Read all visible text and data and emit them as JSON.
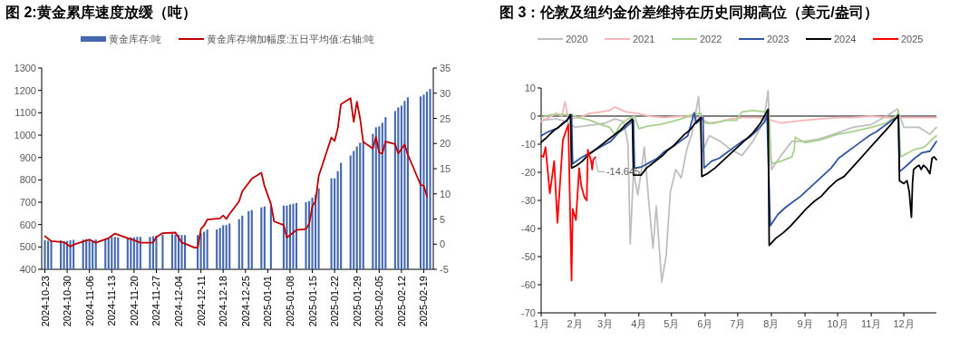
{
  "chart_data": [
    {
      "type": "bar",
      "title": "图 2:黄金累库速度放缓（吨）",
      "legend": "top",
      "xlim": [
        "2024-10-22",
        "2025-02-22"
      ],
      "xticks": [
        "2024-10-23",
        "2024-10-30",
        "2024-11-06",
        "2024-11-13",
        "2024-11-20",
        "2024-11-27",
        "2024-12-04",
        "2024-12-11",
        "2024-12-18",
        "2024-12-25",
        "2025-01-01",
        "2025-01-08",
        "2025-01-15",
        "2025-01-22",
        "2025-01-29",
        "2025-02-05",
        "2025-02-12",
        "2025-02-19"
      ],
      "ylim": [
        400,
        1300
      ],
      "yticks": [
        400,
        500,
        600,
        700,
        800,
        900,
        1000,
        1100,
        1200,
        1300
      ],
      "y2lim": [
        -5,
        35
      ],
      "y2ticks": [
        -5,
        0,
        5,
        10,
        15,
        20,
        25,
        30,
        35
      ],
      "series": [
        {
          "name": "黄金库存:吨",
          "color": "#4468b0",
          "x": [
            "2024-10-23",
            "2024-10-24",
            "2024-10-25",
            "2024-10-28",
            "2024-10-29",
            "2024-10-30",
            "2024-10-31",
            "2024-11-01",
            "2024-11-04",
            "2024-11-05",
            "2024-11-06",
            "2024-11-07",
            "2024-11-08",
            "2024-11-11",
            "2024-11-12",
            "2024-11-13",
            "2024-11-14",
            "2024-11-15",
            "2024-11-18",
            "2024-11-19",
            "2024-11-20",
            "2024-11-21",
            "2024-11-22",
            "2024-11-25",
            "2024-11-26",
            "2024-11-27",
            "2024-11-29",
            "2024-12-02",
            "2024-12-03",
            "2024-12-04",
            "2024-12-05",
            "2024-12-06",
            "2024-12-10",
            "2024-12-11",
            "2024-12-12",
            "2024-12-13",
            "2024-12-16",
            "2024-12-17",
            "2024-12-18",
            "2024-12-19",
            "2024-12-20",
            "2024-12-23",
            "2024-12-24",
            "2024-12-26",
            "2024-12-27",
            "2024-12-30",
            "2024-12-31",
            "2025-01-02",
            "2025-01-06",
            "2025-01-07",
            "2025-01-08",
            "2025-01-09",
            "2025-01-10",
            "2025-01-13",
            "2025-01-14",
            "2025-01-15",
            "2025-01-16",
            "2025-01-17",
            "2025-01-21",
            "2025-01-22",
            "2025-01-23",
            "2025-01-24",
            "2025-01-27",
            "2025-01-28",
            "2025-01-29",
            "2025-01-30",
            "2025-01-31",
            "2025-02-03",
            "2025-02-04",
            "2025-02-05",
            "2025-02-06",
            "2025-02-07",
            "2025-02-10",
            "2025-02-11",
            "2025-02-12",
            "2025-02-13",
            "2025-02-14",
            "2025-02-18",
            "2025-02-19",
            "2025-02-20",
            "2025-02-21"
          ],
          "values": [
            530,
            528,
            525,
            530,
            525,
            527,
            530,
            532,
            533,
            535,
            535,
            530,
            533,
            535,
            540,
            545,
            545,
            543,
            542,
            543,
            543,
            545,
            545,
            545,
            548,
            550,
            555,
            557,
            555,
            555,
            553,
            553,
            553,
            562,
            568,
            578,
            578,
            585,
            597,
            598,
            605,
            624,
            640,
            660,
            665,
            677,
            681,
            683,
            685,
            685,
            690,
            693,
            697,
            700,
            705,
            720,
            733,
            762,
            807,
            807,
            839,
            876,
            909,
            929,
            949,
            966,
            970,
            1006,
            1035,
            1039,
            1055,
            1080,
            1108,
            1124,
            1132,
            1153,
            1169,
            1173,
            1181,
            1194,
            1206
          ]
        },
        {
          "name": "黄金库存增加幅度:五日平均值:右轴:吨",
          "type": "line",
          "axis": "y2",
          "color": "#c00000",
          "x": [
            "2024-10-23",
            "2024-10-25",
            "2024-10-29",
            "2024-10-31",
            "2024-11-01",
            "2024-11-04",
            "2024-11-06",
            "2024-11-08",
            "2024-11-12",
            "2024-11-14",
            "2024-11-18",
            "2024-11-20",
            "2024-11-22",
            "2024-11-26",
            "2024-11-27",
            "2024-11-29",
            "2024-12-03",
            "2024-12-05",
            "2024-12-06",
            "2024-12-09",
            "2024-12-10",
            "2024-12-11",
            "2024-12-12",
            "2024-12-13",
            "2024-12-17",
            "2024-12-18",
            "2024-12-19",
            "2024-12-20",
            "2024-12-23",
            "2024-12-24",
            "2024-12-27",
            "2024-12-30",
            "2024-12-31",
            "2025-01-02",
            "2025-01-03",
            "2025-01-06",
            "2025-01-07",
            "2025-01-08",
            "2025-01-10",
            "2025-01-13",
            "2025-01-14",
            "2025-01-15",
            "2025-01-16",
            "2025-01-17",
            "2025-01-21",
            "2025-01-22",
            "2025-01-23",
            "2025-01-24",
            "2025-01-27",
            "2025-01-28",
            "2025-01-29",
            "2025-01-30",
            "2025-01-31",
            "2025-02-03",
            "2025-02-04",
            "2025-02-05",
            "2025-02-06",
            "2025-02-07",
            "2025-02-10",
            "2025-02-11",
            "2025-02-13",
            "2025-02-14",
            "2025-02-18",
            "2025-02-19",
            "2025-02-20"
          ],
          "values": [
            1.6,
            0.6,
            0.4,
            -0.5,
            -0.1,
            0.5,
            0.9,
            0.3,
            1.2,
            2.1,
            1.2,
            0.8,
            0.3,
            0.3,
            1.4,
            2.2,
            2.3,
            0.3,
            0.1,
            -0.7,
            -0.7,
            3.0,
            3.7,
            4.9,
            5.1,
            5.7,
            5.0,
            6.0,
            8.5,
            10.5,
            13,
            14.2,
            11.5,
            8,
            4.5,
            3.8,
            1.3,
            1.8,
            2.8,
            3.0,
            4,
            7.5,
            8.5,
            13.5,
            21.2,
            20.5,
            23,
            27.8,
            29,
            24.3,
            28.3,
            25,
            20.3,
            19,
            21.3,
            18.2,
            18,
            20.4,
            19.9,
            18,
            19.8,
            17.8,
            11.8,
            11.6,
            9.5
          ]
        }
      ]
    },
    {
      "type": "line",
      "title": "图 3：伦敦及纽约金价差维持在历史同期高位（美元/盎司）",
      "legend": "top",
      "xlim": [
        "--01-01",
        "--12-31"
      ],
      "xticks": [
        {
          "value": "--01-01",
          "label": "1月"
        },
        {
          "value": "--02-01",
          "label": "2月"
        },
        {
          "value": "--03-01",
          "label": "3月"
        },
        {
          "value": "--04-01",
          "label": "4月"
        },
        {
          "value": "--05-01",
          "label": "5月"
        },
        {
          "value": "--06-01",
          "label": "6月"
        },
        {
          "value": "--07-01",
          "label": "7月"
        },
        {
          "value": "--08-01",
          "label": "8月"
        },
        {
          "value": "--09-01",
          "label": "9月"
        },
        {
          "value": "--10-01",
          "label": "10月"
        },
        {
          "value": "--11-01",
          "label": "11月"
        },
        {
          "value": "--12-01",
          "label": "12月"
        }
      ],
      "ylim": [
        -70,
        10
      ],
      "yticks": [
        -70,
        -60,
        -50,
        -40,
        -30,
        -20,
        -10,
        0,
        10
      ],
      "ref_lines": [
        {
          "axis": "y",
          "value": 0,
          "color": "#808080"
        }
      ],
      "annotations": [
        {
          "text": "-14.645",
          "x": "--02-20",
          "y": -14.645
        }
      ],
      "series": [
        {
          "name": "2020",
          "color": "#bfbfbf",
          "x": [
            "--01-01",
            "--01-15",
            "--01-25",
            "--02-01",
            "--02-10",
            "--02-20",
            "--03-01",
            "--03-10",
            "--03-18",
            "--03-22",
            "--03-24",
            "--03-27",
            "--03-31",
            "--04-03",
            "--04-06",
            "--04-10",
            "--04-14",
            "--04-17",
            "--04-22",
            "--04-26",
            "--04-30",
            "--05-05",
            "--05-10",
            "--05-15",
            "--05-20",
            "--05-26",
            "--05-29",
            "--06-05",
            "--06-15",
            "--06-25",
            "--07-05",
            "--07-15",
            "--07-25",
            "--07-29",
            "--08-01",
            "--08-10",
            "--08-20",
            "--09-01",
            "--09-15",
            "--10-01",
            "--10-15",
            "--11-01",
            "--11-15",
            "--11-25",
            "--12-01",
            "--12-15",
            "--12-25",
            "--12-31"
          ],
          "values": [
            -1.5,
            -1,
            -2,
            -4,
            -3.5,
            -3,
            -2.5,
            -1,
            -2,
            -10,
            -45.5,
            -20,
            -28,
            -20,
            -11,
            -30,
            -47,
            -32,
            -59,
            -50,
            -27,
            -19,
            -22,
            -12,
            -6,
            7,
            -13,
            -7,
            -9,
            -12,
            -14,
            -9,
            -2,
            9,
            -19,
            -14,
            -9,
            -9,
            -8,
            -6,
            -4,
            -3,
            0,
            2.5,
            -4,
            -4,
            -6.5,
            -4
          ]
        },
        {
          "name": "2021",
          "color": "#f4b6b6",
          "x": [
            "--01-01",
            "--01-08",
            "--01-15",
            "--01-20",
            "--01-23",
            "--01-26",
            "--02-05",
            "--02-15",
            "--02-25",
            "--03-05",
            "--03-10",
            "--03-20",
            "--03-30",
            "--04-10",
            "--04-25",
            "--05-10",
            "--05-25",
            "--06-05",
            "--06-15",
            "--06-25",
            "--07-05",
            "--07-20",
            "--08-01",
            "--08-10",
            "--08-20",
            "--09-01",
            "--09-15",
            "--10-01",
            "--10-15",
            "--11-01",
            "--11-15",
            "--12-01",
            "--12-15",
            "--12-31"
          ],
          "values": [
            -2,
            -0.5,
            1,
            0,
            5.1,
            -1,
            -0.5,
            1,
            1.5,
            2,
            3.2,
            1.5,
            1,
            0,
            -0.5,
            0,
            -0.5,
            -2.5,
            -2,
            -1,
            -0.5,
            -0.5,
            -1.5,
            -2.5,
            -2,
            -1.5,
            -1,
            -0.5,
            -0.5,
            0,
            -0.5,
            -0.5,
            -0.5,
            -0.5
          ]
        },
        {
          "name": "2022",
          "color": "#a9d18e",
          "x": [
            "--01-01",
            "--01-10",
            "--01-20",
            "--01-28",
            "--02-05",
            "--02-15",
            "--02-25",
            "--03-05",
            "--03-10",
            "--03-15",
            "--03-22",
            "--03-28",
            "--04-01",
            "--04-10",
            "--04-20",
            "--05-01",
            "--05-10",
            "--05-20",
            "--05-28",
            "--06-01",
            "--06-10",
            "--06-20",
            "--06-30",
            "--07-05",
            "--07-15",
            "--07-25",
            "--07-29",
            "--08-01",
            "--08-10",
            "--08-20",
            "--08-22",
            "--08-23",
            "--09-01",
            "--09-15",
            "--10-01",
            "--10-15",
            "--11-01",
            "--11-15",
            "--11-25",
            "--11-26",
            "--11-28",
            "--12-10",
            "--12-20",
            "--12-28",
            "--12-31"
          ],
          "values": [
            -0.5,
            0.5,
            0.5,
            0.5,
            -0.5,
            -1.5,
            -3,
            -4,
            -6.6,
            -3,
            -1,
            0,
            -4.5,
            -3.5,
            -3,
            -2,
            -1,
            0.5,
            1,
            -2.5,
            -2.5,
            -1.5,
            -1.5,
            1.5,
            2,
            1.5,
            2.2,
            -17,
            -16,
            -14.5,
            -12,
            -7.5,
            -9.5,
            -8.5,
            -6.5,
            -5.5,
            -4,
            -2.5,
            0.5,
            2,
            -14.5,
            -12,
            -11,
            -8,
            -7
          ]
        },
        {
          "name": "2023",
          "color": "#2f55a4",
          "x": [
            "--01-01",
            "--01-08",
            "--01-15",
            "--01-22",
            "--01-29",
            "--01-30",
            "--02-06",
            "--02-13",
            "--02-20",
            "--02-27",
            "--03-06",
            "--03-13",
            "--03-20",
            "--03-27",
            "--03-28",
            "--04-04",
            "--04-11",
            "--04-18",
            "--04-25",
            "--05-02",
            "--05-09",
            "--05-16",
            "--05-22",
            "--05-24",
            "--05-30",
            "--05-31",
            "--06-07",
            "--06-14",
            "--06-21",
            "--06-28",
            "--07-05",
            "--07-12",
            "--07-19",
            "--07-26",
            "--07-28",
            "--07-31",
            "--08-07",
            "--08-14",
            "--08-21",
            "--08-28",
            "--09-04",
            "--09-11",
            "--09-18",
            "--09-25",
            "--10-02",
            "--10-09",
            "--10-16",
            "--10-23",
            "--10-30",
            "--11-06",
            "--11-13",
            "--11-20",
            "--11-26",
            "--11-27",
            "--12-04",
            "--12-11",
            "--12-18",
            "--12-25",
            "--12-31"
          ],
          "values": [
            -7,
            -5.5,
            -4.5,
            -2.5,
            0.5,
            -17,
            -15,
            -13.5,
            -12,
            -10.5,
            -9,
            -6,
            -4,
            -1.5,
            -18.5,
            -18,
            -16.5,
            -15,
            -12.5,
            -11,
            -9,
            -7,
            1.2,
            -2.5,
            -0.5,
            -18.5,
            -16,
            -15,
            -13,
            -11,
            -9,
            -7.5,
            -5,
            -2,
            0.5,
            -39,
            -35,
            -32.5,
            -30.5,
            -28.5,
            -26,
            -23.5,
            -21,
            -18.5,
            -15,
            -13,
            -11,
            -9,
            -7,
            -5.5,
            -3.5,
            -1.5,
            -0.3,
            -19.8,
            -17.5,
            -15,
            -13,
            -12.5,
            -9
          ]
        },
        {
          "name": "2024",
          "color": "#000000",
          "x": [
            "--01-01",
            "--01-05",
            "--01-09",
            "--01-13",
            "--01-17",
            "--01-21",
            "--01-25",
            "--01-28",
            "--01-29",
            "--02-03",
            "--02-08",
            "--02-13",
            "--02-18",
            "--02-23",
            "--02-28",
            "--03-05",
            "--03-10",
            "--03-15",
            "--03-20",
            "--03-26",
            "--03-27",
            "--04-03",
            "--04-08",
            "--04-13",
            "--04-18",
            "--04-23",
            "--04-28",
            "--05-03",
            "--05-08",
            "--05-13",
            "--05-18",
            "--05-23",
            "--05-28",
            "--05-29",
            "--06-03",
            "--06-10",
            "--06-17",
            "--06-24",
            "--07-01",
            "--07-08",
            "--07-15",
            "--07-22",
            "--07-29",
            "--07-30",
            "--08-05",
            "--08-12",
            "--08-19",
            "--08-26",
            "--09-02",
            "--09-09",
            "--09-16",
            "--09-23",
            "--09-30",
            "--10-07",
            "--10-14",
            "--10-21",
            "--10-28",
            "--11-04",
            "--11-11",
            "--11-18",
            "--11-26",
            "--11-27",
            "--12-01",
            "--12-04",
            "--12-06",
            "--12-08",
            "--12-09",
            "--12-10",
            "--12-13",
            "--12-15",
            "--12-17",
            "--12-19",
            "--12-22",
            "--12-25",
            "--12-27",
            "--12-29",
            "--12-31"
          ],
          "values": [
            -9.3,
            -8,
            -6.5,
            -5,
            -4,
            -2.5,
            -1.5,
            0.5,
            -18.5,
            -17.5,
            -16,
            -14,
            -12.5,
            -11,
            -9.5,
            -8,
            -6.5,
            -5,
            -3,
            -1,
            -21,
            -21,
            -18.5,
            -17,
            -15.5,
            -14,
            -12,
            -10.5,
            -8.5,
            -6.5,
            -5,
            -2.5,
            -0.5,
            -21.5,
            -20.5,
            -18.5,
            -16,
            -13.5,
            -11,
            -8.5,
            -6,
            -2.5,
            2.4,
            -46,
            -43.5,
            -41.5,
            -39,
            -36,
            -33,
            -30.5,
            -28.5,
            -25.5,
            -23,
            -21.5,
            -18.5,
            -15.5,
            -12.5,
            -9.5,
            -6.5,
            -3.5,
            0.3,
            -23,
            -24,
            -23,
            -27,
            -36,
            -24,
            -19,
            -18,
            -17.5,
            -19,
            -17.5,
            -18.5,
            -20.5,
            -15,
            -14.5,
            -15.5
          ]
        },
        {
          "name": "2025",
          "color": "#ff0000",
          "x": [
            "--01-01",
            "--01-03",
            "--01-05",
            "--01-09",
            "--01-13",
            "--01-16",
            "--01-21",
            "--01-26",
            "--01-29",
            "--01-30",
            "--02-02",
            "--02-05",
            "--02-07",
            "--02-10",
            "--02-12",
            "--02-13",
            "--02-16",
            "--02-17",
            "--02-18",
            "--02-20"
          ],
          "values": [
            -14,
            -14.5,
            -11,
            -27.5,
            -16,
            -38,
            -8.5,
            -3,
            -58.5,
            -33,
            -37,
            -18.5,
            -25,
            -29,
            -30,
            -12,
            -16,
            -19,
            -15.5,
            -14.645
          ]
        }
      ]
    }
  ]
}
